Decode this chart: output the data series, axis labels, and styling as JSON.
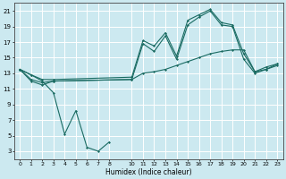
{
  "xlabel": "Humidex (Indice chaleur)",
  "bg_color": "#cce9f0",
  "grid_color": "#ffffff",
  "line_color": "#1a6b62",
  "xlim": [
    -0.5,
    23.5
  ],
  "ylim": [
    2,
    22
  ],
  "xticks": [
    0,
    1,
    2,
    3,
    4,
    5,
    6,
    7,
    8,
    10,
    11,
    12,
    13,
    14,
    15,
    16,
    17,
    18,
    19,
    20,
    21,
    22,
    23
  ],
  "yticks": [
    3,
    5,
    7,
    9,
    11,
    13,
    15,
    17,
    19,
    21
  ],
  "lines": [
    {
      "x": [
        0,
        1,
        2,
        3,
        4,
        5,
        6,
        7,
        8
      ],
      "y": [
        13.5,
        12.8,
        12.0,
        10.5,
        5.2,
        8.2,
        3.5,
        3.0,
        4.2
      ]
    },
    {
      "x": [
        0,
        1,
        2,
        3,
        10,
        11,
        12,
        13,
        14,
        15,
        16,
        17,
        18,
        19,
        20,
        21,
        22,
        23
      ],
      "y": [
        13.5,
        12.8,
        12.2,
        12.2,
        12.5,
        17.2,
        16.5,
        18.2,
        15.2,
        19.8,
        20.5,
        21.2,
        19.5,
        19.2,
        15.5,
        13.2,
        13.8,
        14.2
      ]
    },
    {
      "x": [
        0,
        1,
        2,
        3,
        10,
        11,
        12,
        13,
        14,
        15,
        16,
        17,
        18,
        19,
        20,
        21,
        22,
        23
      ],
      "y": [
        13.5,
        12.2,
        11.8,
        12.0,
        12.2,
        16.8,
        15.8,
        17.8,
        14.8,
        19.2,
        20.2,
        21.0,
        19.2,
        19.0,
        14.8,
        13.0,
        13.5,
        14.0
      ]
    },
    {
      "x": [
        0,
        1,
        2,
        3,
        10,
        11,
        12,
        13,
        14,
        15,
        16,
        17,
        18,
        19,
        20,
        21,
        22,
        23
      ],
      "y": [
        13.5,
        12.0,
        11.5,
        12.0,
        12.2,
        13.0,
        13.2,
        13.5,
        14.0,
        14.5,
        15.0,
        15.5,
        15.8,
        16.0,
        16.0,
        13.2,
        13.5,
        14.2
      ]
    }
  ]
}
